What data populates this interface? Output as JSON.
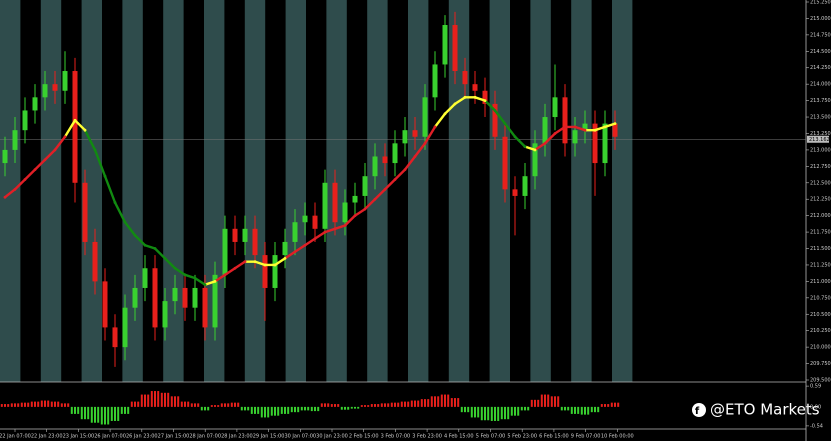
{
  "chart_data": {
    "type": "candlestick",
    "open": [
      212.8,
      213.0,
      213.3,
      213.6,
      213.8,
      214.0,
      213.9,
      214.2,
      212.5,
      211.6,
      211.0,
      210.3,
      210.0,
      210.6,
      210.9,
      211.2,
      210.3,
      210.7,
      210.9,
      210.6,
      210.9,
      210.3,
      211.1,
      211.8,
      211.6,
      211.8,
      211.4,
      210.9,
      211.4,
      211.6,
      211.9,
      212.0,
      211.8,
      212.5,
      211.9,
      212.2,
      212.3,
      212.6,
      212.9,
      212.8,
      213.1,
      213.3,
      213.2,
      213.8,
      214.3,
      214.9,
      214.2,
      214.0,
      213.9,
      213.7,
      213.2,
      212.4,
      212.3,
      212.6,
      213.1,
      213.5,
      213.8,
      213.1,
      213.3,
      213.4,
      212.8,
      213.4
    ],
    "high": [
      213.2,
      213.5,
      213.8,
      214.0,
      214.2,
      214.2,
      214.5,
      214.4,
      212.7,
      211.8,
      211.2,
      210.5,
      210.8,
      211.1,
      211.4,
      211.4,
      210.9,
      211.1,
      211.1,
      211.1,
      211.1,
      211.3,
      212.0,
      212.0,
      212.0,
      212.0,
      211.6,
      211.6,
      211.8,
      212.1,
      212.2,
      212.2,
      212.7,
      212.7,
      212.4,
      212.5,
      212.8,
      213.1,
      213.1,
      213.3,
      213.5,
      213.5,
      214.0,
      214.5,
      215.05,
      215.1,
      214.4,
      214.2,
      214.1,
      213.9,
      213.4,
      212.6,
      212.8,
      213.3,
      213.7,
      214.3,
      214.0,
      213.5,
      213.6,
      213.6,
      213.6,
      213.6
    ],
    "low": [
      212.6,
      212.8,
      213.1,
      213.4,
      213.6,
      213.7,
      213.7,
      212.2,
      211.4,
      210.8,
      210.1,
      209.7,
      209.8,
      210.4,
      210.7,
      210.1,
      210.1,
      210.5,
      210.4,
      210.4,
      210.1,
      210.1,
      210.9,
      211.4,
      211.4,
      211.2,
      210.4,
      210.7,
      211.2,
      211.4,
      211.7,
      211.6,
      211.6,
      211.7,
      211.7,
      212.0,
      212.1,
      212.4,
      212.6,
      212.6,
      212.9,
      213.0,
      213.0,
      213.6,
      214.1,
      214.0,
      213.8,
      213.7,
      213.5,
      213.0,
      212.2,
      211.7,
      212.1,
      212.4,
      212.9,
      213.3,
      212.9,
      212.9,
      213.1,
      212.3,
      212.6,
      213.0
    ],
    "close": [
      213.0,
      213.3,
      213.6,
      213.8,
      214.0,
      213.9,
      214.2,
      212.5,
      211.6,
      211.0,
      210.3,
      210.0,
      210.6,
      210.9,
      211.2,
      210.3,
      210.7,
      210.9,
      210.6,
      210.9,
      210.3,
      211.1,
      211.8,
      211.6,
      211.8,
      211.4,
      210.9,
      211.4,
      211.6,
      211.9,
      212.0,
      211.8,
      212.5,
      211.9,
      212.2,
      212.3,
      212.6,
      212.9,
      212.8,
      213.1,
      213.3,
      213.2,
      213.8,
      214.3,
      214.9,
      214.2,
      214.0,
      213.9,
      213.7,
      213.2,
      212.4,
      212.3,
      212.6,
      213.1,
      213.5,
      213.8,
      213.1,
      213.3,
      213.4,
      212.8,
      213.4,
      213.2
    ],
    "up_color": "#39d12f",
    "down_color": "#e8201c",
    "ylim": [
      209.5,
      215.25
    ],
    "yticks": [
      {
        "value": 209.5,
        "label": "209.500"
      },
      {
        "value": 209.75,
        "label": "209.750"
      },
      {
        "value": 210,
        "label": "210.000"
      },
      {
        "value": 210.25,
        "label": "210.250"
      },
      {
        "value": 210.5,
        "label": "210.500"
      },
      {
        "value": 210.75,
        "label": "210.750"
      },
      {
        "value": 211,
        "label": "211.000"
      },
      {
        "value": 211.25,
        "label": "211.250"
      },
      {
        "value": 211.5,
        "label": "211.500"
      },
      {
        "value": 211.75,
        "label": "211.750"
      },
      {
        "value": 212,
        "label": "212.000"
      },
      {
        "value": 212.25,
        "label": "212.250"
      },
      {
        "value": 212.5,
        "label": "212.500"
      },
      {
        "value": 212.75,
        "label": "212.750"
      },
      {
        "value": 213,
        "label": "213.000"
      },
      {
        "value": 213.25,
        "label": "213.250"
      },
      {
        "value": 213.5,
        "label": "213.500"
      },
      {
        "value": 213.75,
        "label": "213.750"
      },
      {
        "value": 214,
        "label": "214.000"
      },
      {
        "value": 214.25,
        "label": "214.250"
      },
      {
        "value": 214.5,
        "label": "214.500"
      },
      {
        "value": 214.75,
        "label": "214.750"
      },
      {
        "value": 215,
        "label": "215.000"
      },
      {
        "value": 215.25,
        "label": "215.250"
      }
    ],
    "last_price": 213.162,
    "ma": {
      "values": [
        212.28,
        212.4,
        212.55,
        212.7,
        212.85,
        213.0,
        213.2,
        213.45,
        213.3,
        213.0,
        212.6,
        212.2,
        211.9,
        211.7,
        211.55,
        211.5,
        211.35,
        211.2,
        211.1,
        211.05,
        210.95,
        211.0,
        211.1,
        211.2,
        211.3,
        211.3,
        211.25,
        211.25,
        211.35,
        211.45,
        211.55,
        211.65,
        211.75,
        211.8,
        211.85,
        212.0,
        212.1,
        212.25,
        212.4,
        212.55,
        212.7,
        212.9,
        213.1,
        213.35,
        213.55,
        213.7,
        213.8,
        213.8,
        213.75,
        213.6,
        213.4,
        213.2,
        213.05,
        213.0,
        213.1,
        213.25,
        213.35,
        213.35,
        213.3,
        213.3,
        213.35,
        213.4
      ],
      "colors": [
        "#e01f26",
        "#e01f26",
        "#e01f26",
        "#e01f26",
        "#e01f26",
        "#e01f26",
        "#e01f26",
        "#ffff33",
        "#ffff33",
        "#118a11",
        "#118a11",
        "#118a11",
        "#118a11",
        "#118a11",
        "#118a11",
        "#118a11",
        "#118a11",
        "#118a11",
        "#118a11",
        "#118a11",
        "#118a11",
        "#ffff33",
        "#e01f26",
        "#e01f26",
        "#e01f26",
        "#ffff33",
        "#ffff33",
        "#ffff33",
        "#ffff33",
        "#e01f26",
        "#e01f26",
        "#e01f26",
        "#e01f26",
        "#e01f26",
        "#e01f26",
        "#e01f26",
        "#e01f26",
        "#e01f26",
        "#e01f26",
        "#e01f26",
        "#e01f26",
        "#e01f26",
        "#e01f26",
        "#e01f26",
        "#ffff33",
        "#ffff33",
        "#ffff33",
        "#ffff33",
        "#ffff33",
        "#118a11",
        "#118a11",
        "#118a11",
        "#118a11",
        "#ffff33",
        "#e01f26",
        "#e01f26",
        "#e01f26",
        "#e01f26",
        "#e01f26",
        "#ffff33",
        "#ffff33",
        "#ffff33"
      ]
    },
    "oscillator": {
      "values": [
        0.08,
        0.1,
        0.12,
        0.15,
        0.18,
        0.15,
        0.1,
        -0.2,
        -0.35,
        -0.45,
        -0.5,
        -0.4,
        -0.2,
        0.15,
        0.35,
        0.45,
        0.4,
        0.3,
        0.15,
        0.1,
        -0.1,
        0.05,
        0.1,
        0.12,
        -0.1,
        -0.2,
        -0.3,
        -0.25,
        -0.2,
        -0.15,
        -0.1,
        -0.12,
        0.1,
        0.08,
        -0.08,
        -0.05,
        0.05,
        0.08,
        0.1,
        0.12,
        0.15,
        0.18,
        0.22,
        0.3,
        0.35,
        0.25,
        -0.15,
        -0.3,
        -0.38,
        -0.4,
        -0.35,
        -0.25,
        -0.1,
        0.2,
        0.35,
        0.3,
        -0.1,
        -0.2,
        -0.22,
        -0.15,
        0.08,
        0.12
      ],
      "ylim": [
        -0.6,
        0.65
      ],
      "yticks": [
        0.59,
        {
          "value": 0,
          "label": "0.00"
        },
        -0.54
      ],
      "pos_color": "#e8201c",
      "neg_color": "#39d12f"
    },
    "x_labels": [
      "22 Jan 07:00",
      "22 Jan 23:00",
      "23 Jan 15:00",
      "26 Jan 07:00",
      "26 Jan 23:00",
      "27 Jan 15:00",
      "28 Jan 07:00",
      "28 Jan 23:00",
      "29 Jan 15:00",
      "30 Jan 07:00",
      "30 Jan 23:00",
      "2 Feb 15:00",
      "3 Feb 07:00",
      "3 Feb 23:00",
      "4 Feb 15:00",
      "5 Feb 07:00",
      "5 Feb 23:00",
      "6 Feb 15:00",
      "9 Feb 07:00",
      "10 Feb 00:00"
    ]
  },
  "watermark": "@ETO Markets"
}
